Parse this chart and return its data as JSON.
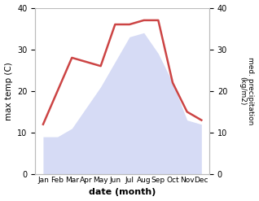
{
  "months": [
    "Jan",
    "Feb",
    "Mar",
    "Apr",
    "May",
    "Jun",
    "Jul",
    "Aug",
    "Sep",
    "Oct",
    "Nov",
    "Dec"
  ],
  "temperature": [
    9,
    9,
    11,
    16,
    21,
    27,
    33,
    34,
    29,
    22,
    13,
    12
  ],
  "precipitation": [
    12,
    20,
    28,
    27,
    26,
    36,
    36,
    37,
    37,
    22,
    15,
    13
  ],
  "precip_line_color": "#cc4444",
  "temp_fill_color": "#c0c8f0",
  "temp_fill_alpha": 0.65,
  "ylim_left": [
    0,
    40
  ],
  "ylim_right": [
    0,
    40
  ],
  "yticks_left": [
    0,
    10,
    20,
    30,
    40
  ],
  "yticks_right": [
    0,
    10,
    20,
    30,
    40
  ],
  "ylabel_left": "max temp (C)",
  "ylabel_right": "med. precipitation\n(kg/m2)",
  "xlabel": "date (month)",
  "bg_color": "#ffffff",
  "line_width": 1.8,
  "spine_color": "#bbbbbb"
}
